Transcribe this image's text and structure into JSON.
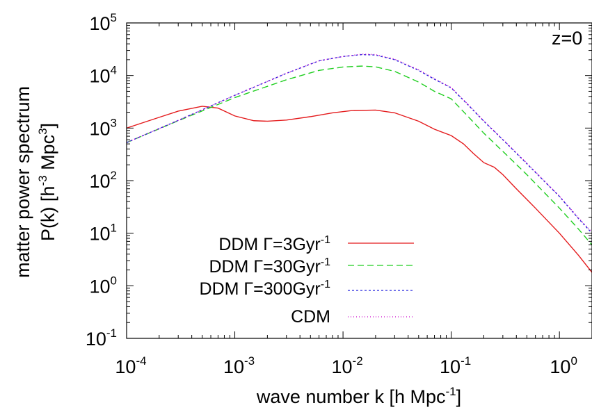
{
  "chart_data": {
    "type": "line",
    "xscale": "log",
    "yscale": "log",
    "xlim": [
      0.0001,
      2
    ],
    "ylim": [
      0.1,
      100000
    ],
    "grid": false,
    "legend_position": "bottom-left",
    "xlabel": {
      "main": "wave number k [h Mpc",
      "sup": "-1",
      "end": "]"
    },
    "ylabel": {
      "line1": "matter power spectrum",
      "line2_main": "P(k) [h",
      "line2_sup1": "-3",
      "line2_mid": " Mpc",
      "line2_sup2": "3",
      "line2_end": "]"
    },
    "x_ticks": [
      {
        "value": 0.0001,
        "base": "10",
        "exp": "-4"
      },
      {
        "value": 0.001,
        "base": "10",
        "exp": "-3"
      },
      {
        "value": 0.01,
        "base": "10",
        "exp": "-2"
      },
      {
        "value": 0.1,
        "base": "10",
        "exp": "-1"
      },
      {
        "value": 1,
        "base": "10",
        "exp": "0"
      }
    ],
    "y_ticks": [
      {
        "value": 0.1,
        "base": "10",
        "exp": "-1"
      },
      {
        "value": 1,
        "base": "10",
        "exp": "0"
      },
      {
        "value": 10,
        "base": "10",
        "exp": "1"
      },
      {
        "value": 100,
        "base": "10",
        "exp": "2"
      },
      {
        "value": 1000,
        "base": "10",
        "exp": "3"
      },
      {
        "value": 10000,
        "base": "10",
        "exp": "4"
      },
      {
        "value": 100000,
        "base": "10",
        "exp": "5"
      }
    ],
    "annotation": "z=0",
    "series": [
      {
        "name": "DDM Γ=3Gyr",
        "name_sup": "-1",
        "color": "#e41a1c",
        "dash": "",
        "points": [
          [
            0.0001,
            1000
          ],
          [
            0.0002,
            1600
          ],
          [
            0.0003,
            2100
          ],
          [
            0.0005,
            2600
          ],
          [
            0.0007,
            2400
          ],
          [
            0.001,
            1700
          ],
          [
            0.0015,
            1380
          ],
          [
            0.002,
            1350
          ],
          [
            0.003,
            1420
          ],
          [
            0.005,
            1650
          ],
          [
            0.008,
            1950
          ],
          [
            0.012,
            2150
          ],
          [
            0.02,
            2200
          ],
          [
            0.03,
            1950
          ],
          [
            0.05,
            1350
          ],
          [
            0.07,
            950
          ],
          [
            0.1,
            720
          ],
          [
            0.13,
            500
          ],
          [
            0.16,
            330
          ],
          [
            0.2,
            220
          ],
          [
            0.25,
            180
          ],
          [
            0.3,
            130
          ],
          [
            0.4,
            70
          ],
          [
            0.6,
            30
          ],
          [
            1,
            10
          ],
          [
            1.5,
            3.8
          ],
          [
            2,
            1.8
          ]
        ]
      },
      {
        "name": "DDM Γ=30Gyr",
        "name_sup": "-1",
        "color": "#1fce1f",
        "dash": "9,5",
        "points": [
          [
            0.0001,
            530
          ],
          [
            0.0003,
            1380
          ],
          [
            0.001,
            3800
          ],
          [
            0.003,
            8300
          ],
          [
            0.006,
            12500
          ],
          [
            0.01,
            14500
          ],
          [
            0.015,
            15100
          ],
          [
            0.02,
            14600
          ],
          [
            0.03,
            12000
          ],
          [
            0.05,
            7500
          ],
          [
            0.07,
            5000
          ],
          [
            0.1,
            3600
          ],
          [
            0.15,
            1500
          ],
          [
            0.2,
            800
          ],
          [
            0.3,
            360
          ],
          [
            0.5,
            130
          ],
          [
            1,
            30
          ],
          [
            1.5,
            12
          ],
          [
            2,
            6
          ]
        ]
      },
      {
        "name": "DDM Γ=300Gyr",
        "name_sup": "-1",
        "color": "#2222dd",
        "dash": "3,3",
        "points": [
          [
            0.0001,
            530
          ],
          [
            0.0003,
            1400
          ],
          [
            0.001,
            4200
          ],
          [
            0.003,
            11000
          ],
          [
            0.006,
            19000
          ],
          [
            0.01,
            23000
          ],
          [
            0.015,
            25000
          ],
          [
            0.02,
            24500
          ],
          [
            0.03,
            20000
          ],
          [
            0.05,
            12500
          ],
          [
            0.07,
            8500
          ],
          [
            0.1,
            5800
          ],
          [
            0.15,
            2500
          ],
          [
            0.2,
            1350
          ],
          [
            0.3,
            600
          ],
          [
            0.5,
            210
          ],
          [
            1,
            50
          ],
          [
            1.5,
            19
          ],
          [
            2,
            10
          ]
        ]
      },
      {
        "name": "CDM",
        "name_sup": "",
        "color": "#cc00cc",
        "dash": "1,3",
        "points": [
          [
            0.0001,
            530
          ],
          [
            0.0003,
            1400
          ],
          [
            0.001,
            4200
          ],
          [
            0.003,
            11000
          ],
          [
            0.006,
            19000
          ],
          [
            0.01,
            23000
          ],
          [
            0.015,
            25500
          ],
          [
            0.02,
            25000
          ],
          [
            0.03,
            20500
          ],
          [
            0.05,
            12800
          ],
          [
            0.07,
            8700
          ],
          [
            0.1,
            5900
          ],
          [
            0.15,
            2550
          ],
          [
            0.2,
            1380
          ],
          [
            0.3,
            610
          ],
          [
            0.5,
            215
          ],
          [
            1,
            51
          ],
          [
            1.5,
            19.5
          ],
          [
            2,
            10.5
          ]
        ]
      }
    ]
  }
}
